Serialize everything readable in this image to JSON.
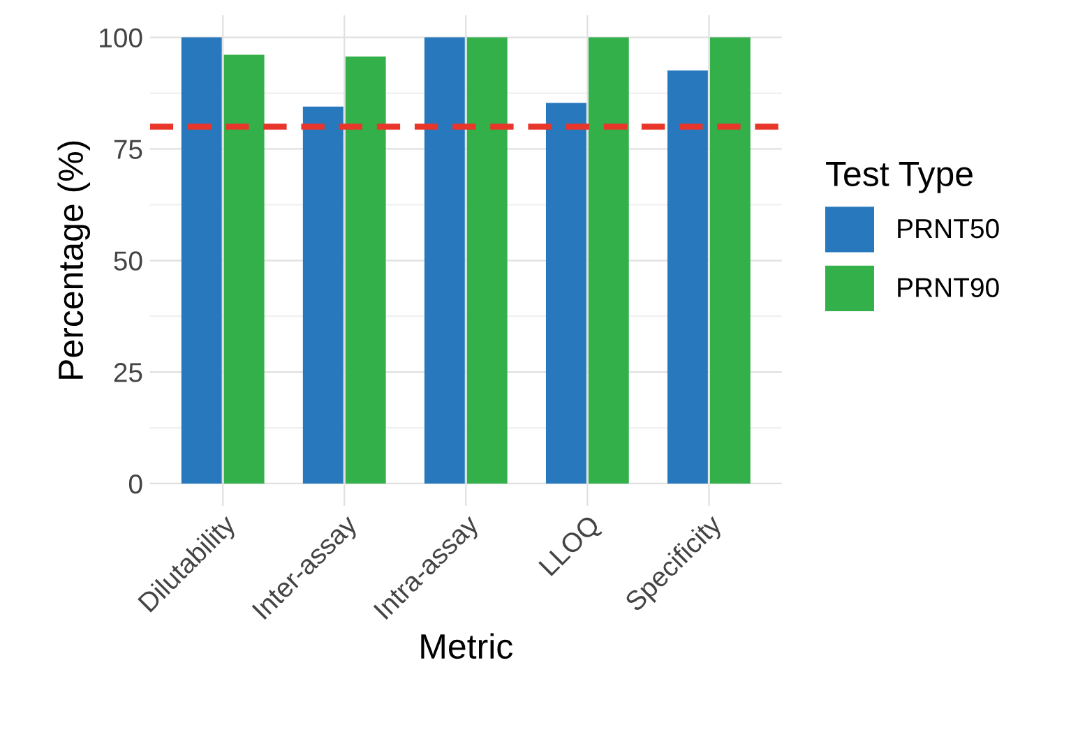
{
  "chart_data": {
    "type": "bar",
    "xlabel": "Metric",
    "ylabel": "Percentage (%)",
    "legend_title": "Test Type",
    "categories": [
      "Dilutability",
      "Inter-assay",
      "Intra-assay",
      "LLOQ",
      "Specificity"
    ],
    "series": [
      {
        "name": "PRNT50",
        "color": "#2878bd",
        "values": [
          100,
          84.5,
          100,
          85.3,
          92.6
        ]
      },
      {
        "name": "PRNT90",
        "color": "#33b04a",
        "values": [
          96.1,
          95.7,
          100,
          100,
          100
        ]
      }
    ],
    "ylim": [
      -5,
      105
    ],
    "yticks": [
      0,
      25,
      50,
      75,
      100
    ],
    "grid": true,
    "legend": "right",
    "ref_lines": [
      {
        "axis": "y",
        "value": 80,
        "color": "#e8362b",
        "line_style": "dashed"
      }
    ]
  }
}
